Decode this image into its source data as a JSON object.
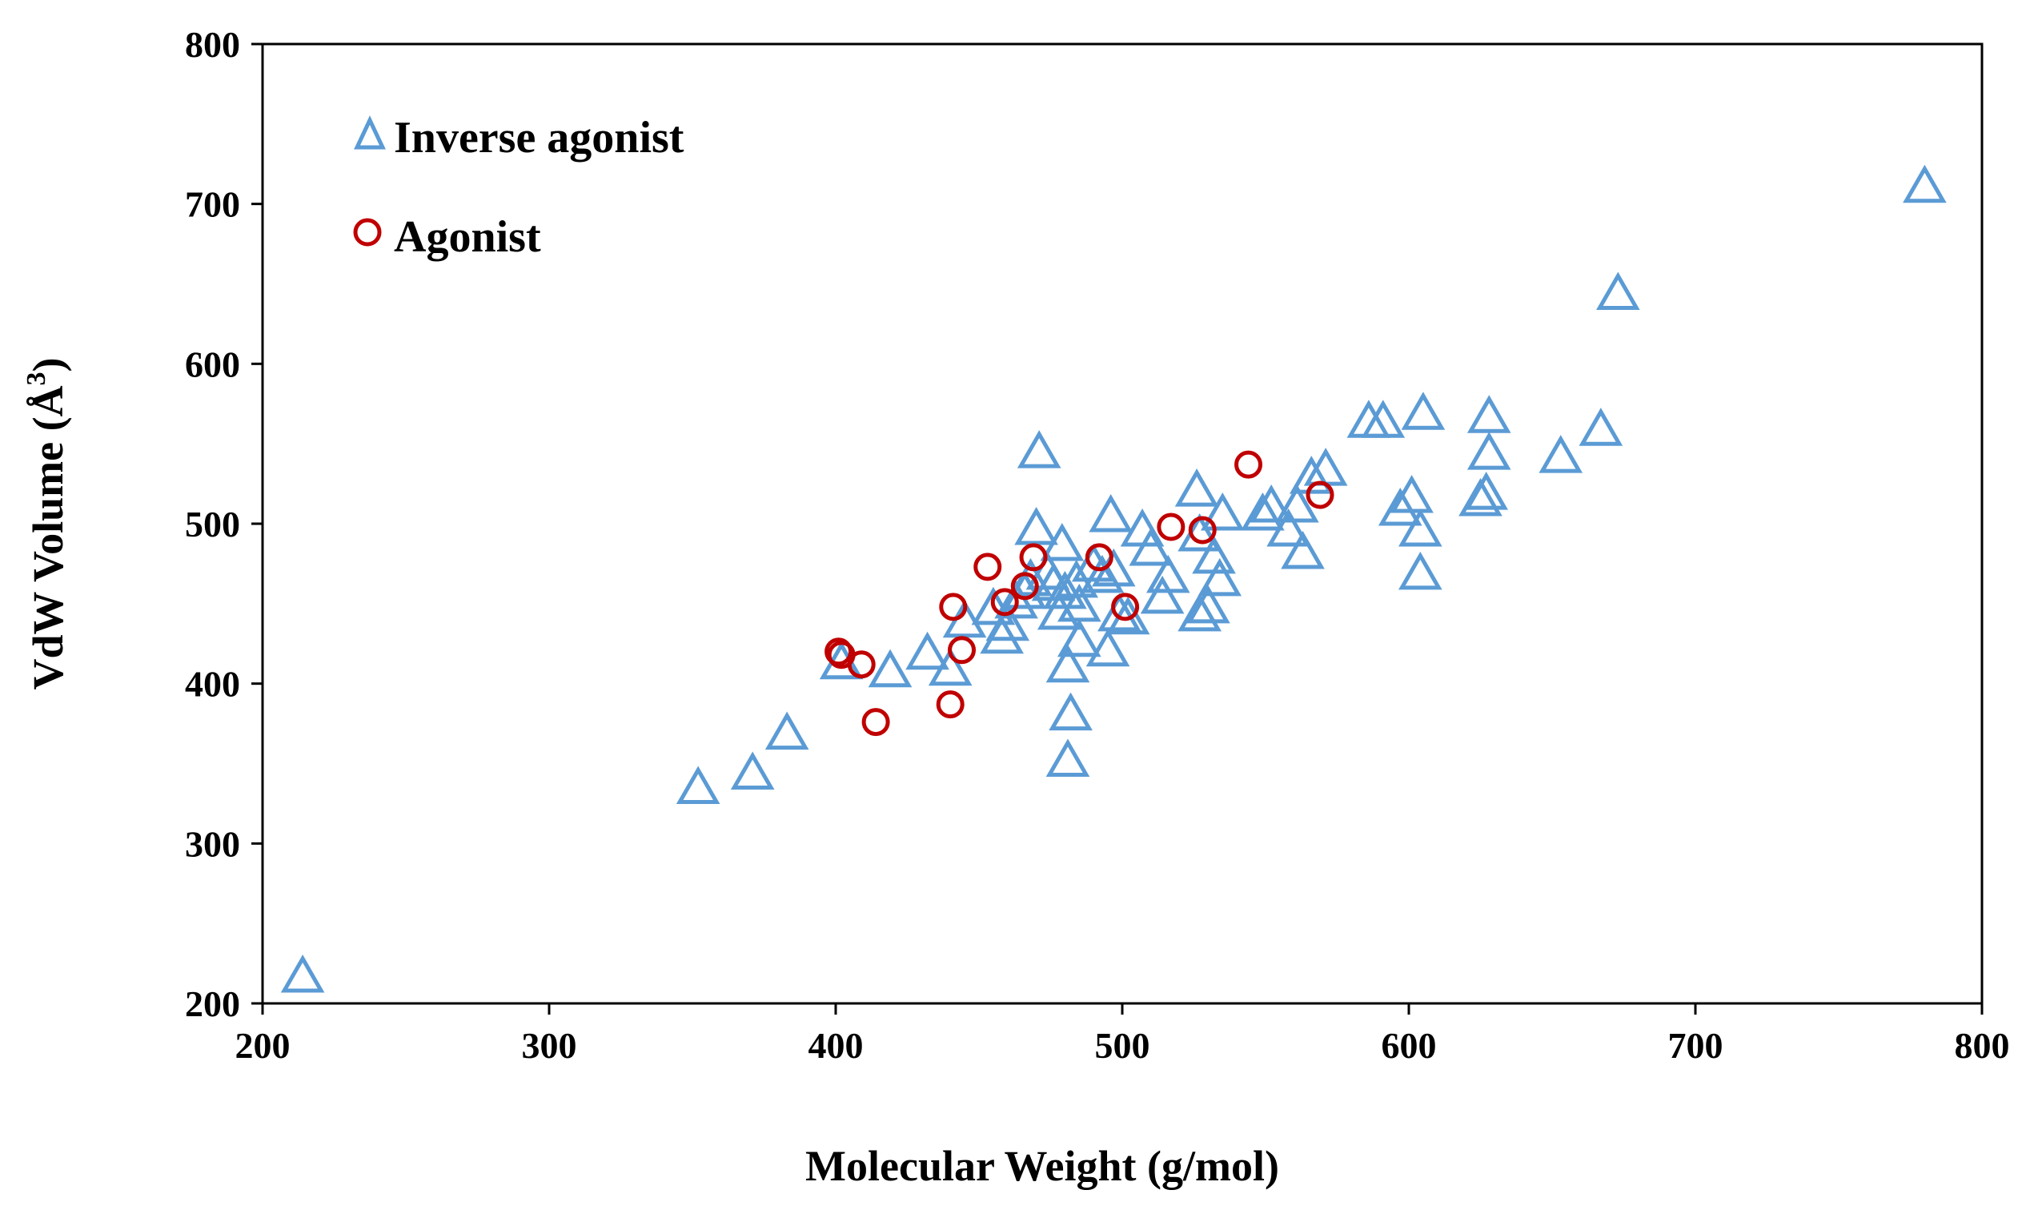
{
  "chart_data": {
    "type": "scatter",
    "xlabel": "Molecular Weight (g/mol)",
    "ylabel_main": "VdW Volume (Å",
    "ylabel_sup": "3",
    "ylabel_close": ")",
    "xlim": [
      200,
      800
    ],
    "ylim": [
      200,
      800
    ],
    "xticks": [
      200,
      300,
      400,
      500,
      600,
      700,
      800
    ],
    "yticks": [
      200,
      300,
      400,
      500,
      600,
      700,
      800
    ],
    "grid": false,
    "legend_position": "top-left",
    "series": [
      {
        "name": "Inverse agonist",
        "marker": "triangle-open",
        "color": "#5B9BD5",
        "points": [
          [
            214,
            218
          ],
          [
            352,
            336
          ],
          [
            371,
            345
          ],
          [
            383,
            370
          ],
          [
            402,
            414
          ],
          [
            419,
            409
          ],
          [
            432,
            420
          ],
          [
            440,
            410
          ],
          [
            445,
            440
          ],
          [
            455,
            448
          ],
          [
            458,
            430
          ],
          [
            460,
            438
          ],
          [
            463,
            452
          ],
          [
            466,
            458
          ],
          [
            468,
            466
          ],
          [
            470,
            498
          ],
          [
            471,
            546
          ],
          [
            474,
            470
          ],
          [
            476,
            463
          ],
          [
            478,
            445
          ],
          [
            479,
            488
          ],
          [
            480,
            458
          ],
          [
            481,
            412
          ],
          [
            482,
            382
          ],
          [
            481,
            353
          ],
          [
            484,
            465
          ],
          [
            485,
            450
          ],
          [
            485,
            428
          ],
          [
            490,
            475
          ],
          [
            493,
            468
          ],
          [
            495,
            422
          ],
          [
            496,
            506
          ],
          [
            497,
            472
          ],
          [
            499,
            444
          ],
          [
            502,
            442
          ],
          [
            507,
            497
          ],
          [
            510,
            485
          ],
          [
            514,
            455
          ],
          [
            516,
            468
          ],
          [
            526,
            522
          ],
          [
            527,
            494
          ],
          [
            527,
            444
          ],
          [
            530,
            449
          ],
          [
            532,
            480
          ],
          [
            534,
            466
          ],
          [
            535,
            507
          ],
          [
            549,
            507
          ],
          [
            552,
            512
          ],
          [
            558,
            497
          ],
          [
            561,
            512
          ],
          [
            563,
            483
          ],
          [
            566,
            530
          ],
          [
            571,
            535
          ],
          [
            586,
            565
          ],
          [
            591,
            565
          ],
          [
            597,
            510
          ],
          [
            601,
            518
          ],
          [
            604,
            470
          ],
          [
            604,
            497
          ],
          [
            605,
            570
          ],
          [
            625,
            516
          ],
          [
            627,
            520
          ],
          [
            628,
            545
          ],
          [
            628,
            568
          ],
          [
            653,
            543
          ],
          [
            667,
            560
          ],
          [
            673,
            645
          ],
          [
            780,
            712
          ]
        ]
      },
      {
        "name": "Agonist",
        "marker": "circle-open",
        "color": "#C00000",
        "points": [
          [
            401,
            420
          ],
          [
            402,
            418
          ],
          [
            409,
            412
          ],
          [
            414,
            376
          ],
          [
            440,
            387
          ],
          [
            441,
            448
          ],
          [
            444,
            421
          ],
          [
            453,
            473
          ],
          [
            459,
            451
          ],
          [
            466,
            461
          ],
          [
            469,
            479
          ],
          [
            492,
            479
          ],
          [
            501,
            448
          ],
          [
            517,
            498
          ],
          [
            528,
            496
          ],
          [
            544,
            537
          ],
          [
            569,
            518
          ]
        ]
      }
    ]
  }
}
